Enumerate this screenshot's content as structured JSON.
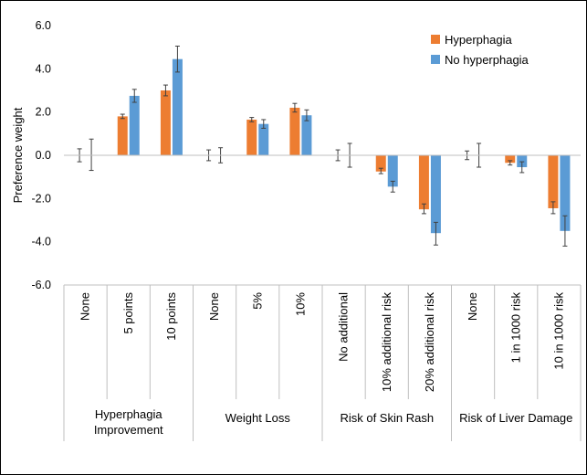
{
  "colors": {
    "series": [
      "#ED7D31",
      "#5B9BD5"
    ],
    "axis": "#BFBFBF",
    "error": "#404040"
  },
  "chart_data": {
    "type": "bar",
    "ylabel": "Preference weight",
    "ylim": [
      -6,
      6
    ],
    "yticks": [
      "6.0",
      "4.0",
      "2.0",
      "0.0",
      "-2.0",
      "-4.0",
      "-6.0"
    ],
    "ytick_values": [
      6,
      4,
      2,
      0,
      -2,
      -4,
      -6
    ],
    "grid": false,
    "legend_position": "top-right",
    "groups": [
      {
        "label": "Hyperphagia Improvement",
        "lines": [
          "Hyperphagia",
          "Improvement"
        ],
        "categories": [
          "None",
          "5 points",
          "10 points"
        ]
      },
      {
        "label": "Weight Loss",
        "lines": [
          "Weight Loss"
        ],
        "categories": [
          "None",
          "5%",
          "10%"
        ]
      },
      {
        "label": "Risk of Skin Rash",
        "lines": [
          "Risk of Skin Rash"
        ],
        "categories": [
          "No additional",
          "10% additional risk",
          "20% additional risk"
        ]
      },
      {
        "label": "Risk of Liver Damage",
        "lines": [
          "Risk of Liver Damage"
        ],
        "categories": [
          "None",
          "1 in 1000 risk",
          "10 in 1000 risk"
        ]
      }
    ],
    "series": [
      {
        "name": "Hyperphagia",
        "values": [
          0.0,
          1.8,
          3.0,
          0.0,
          1.65,
          2.2,
          0.0,
          -0.75,
          -2.5,
          0.0,
          -0.35,
          -2.45
        ],
        "error_low": [
          -0.3,
          1.7,
          2.75,
          -0.25,
          1.55,
          2.0,
          -0.25,
          -0.85,
          -2.7,
          -0.2,
          -0.45,
          -2.7
        ],
        "error_high": [
          0.3,
          1.9,
          3.25,
          0.25,
          1.75,
          2.4,
          0.25,
          -0.6,
          -2.25,
          0.2,
          -0.25,
          -2.15
        ]
      },
      {
        "name": "No hyperphagia",
        "values": [
          0.0,
          2.75,
          4.45,
          0.0,
          1.45,
          1.85,
          0.0,
          -1.45,
          -3.6,
          0.0,
          -0.55,
          -3.5
        ],
        "error_low": [
          -0.7,
          2.45,
          3.85,
          -0.35,
          1.25,
          1.6,
          -0.55,
          -1.7,
          -4.15,
          -0.55,
          -0.8,
          -4.2
        ],
        "error_high": [
          0.75,
          3.05,
          5.05,
          0.35,
          1.65,
          2.1,
          0.55,
          -1.2,
          -3.1,
          0.55,
          -0.3,
          -2.8
        ]
      }
    ]
  }
}
